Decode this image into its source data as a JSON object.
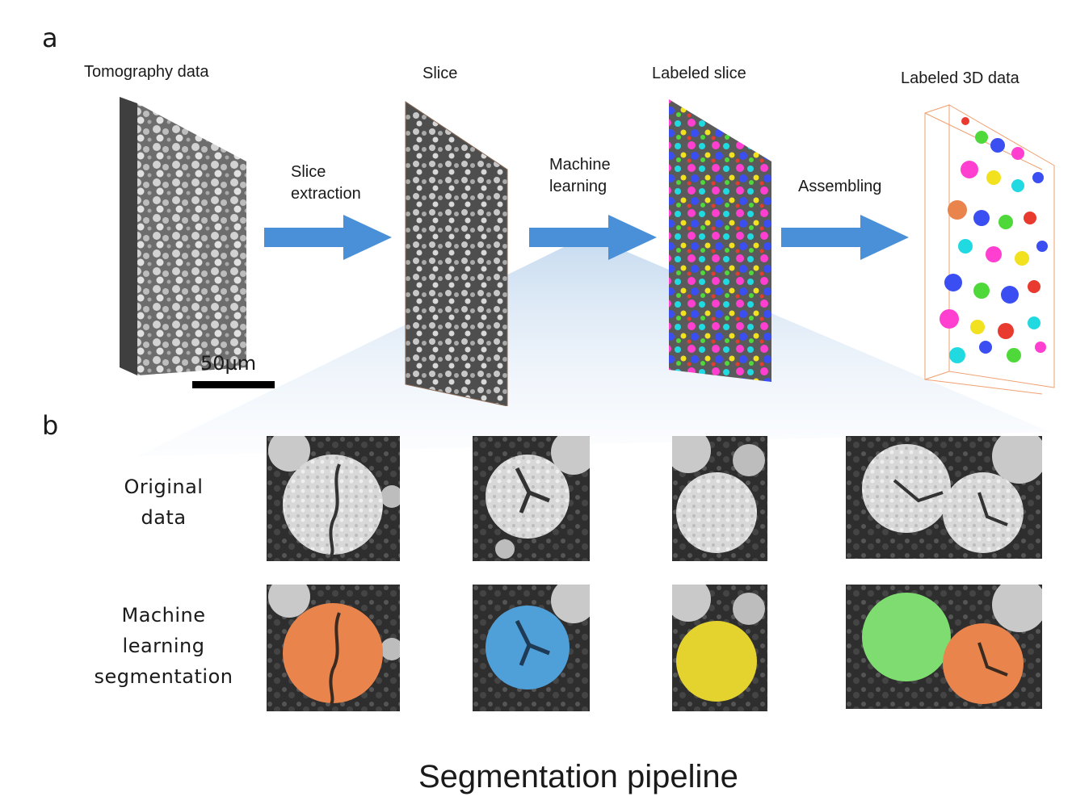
{
  "panel_a": {
    "label": "a",
    "steps": [
      {
        "title": "Tomography data"
      },
      {
        "title": "Slice"
      },
      {
        "title": "Labeled slice"
      },
      {
        "title": "Labeled 3D data"
      }
    ],
    "arrows": [
      {
        "label_line1": "Slice",
        "label_line2": "extraction"
      },
      {
        "label_line1": "Machine",
        "label_line2": "learning"
      },
      {
        "label_line1": "Assembling",
        "label_line2": ""
      }
    ],
    "scale_bar": "50µm"
  },
  "panel_b": {
    "label": "b",
    "row_original": [
      "Original",
      "data"
    ],
    "row_ml": [
      "Machine",
      "learning",
      "segmentation"
    ],
    "segment_colors": [
      "#e8844c",
      "#4f9fd8",
      "#e4d22e",
      "#7fdc70",
      "#e8844c"
    ]
  },
  "caption": "Segmentation pipeline",
  "colors": {
    "arrow": "#4a90d9",
    "funnel": "#cfe0f2"
  }
}
